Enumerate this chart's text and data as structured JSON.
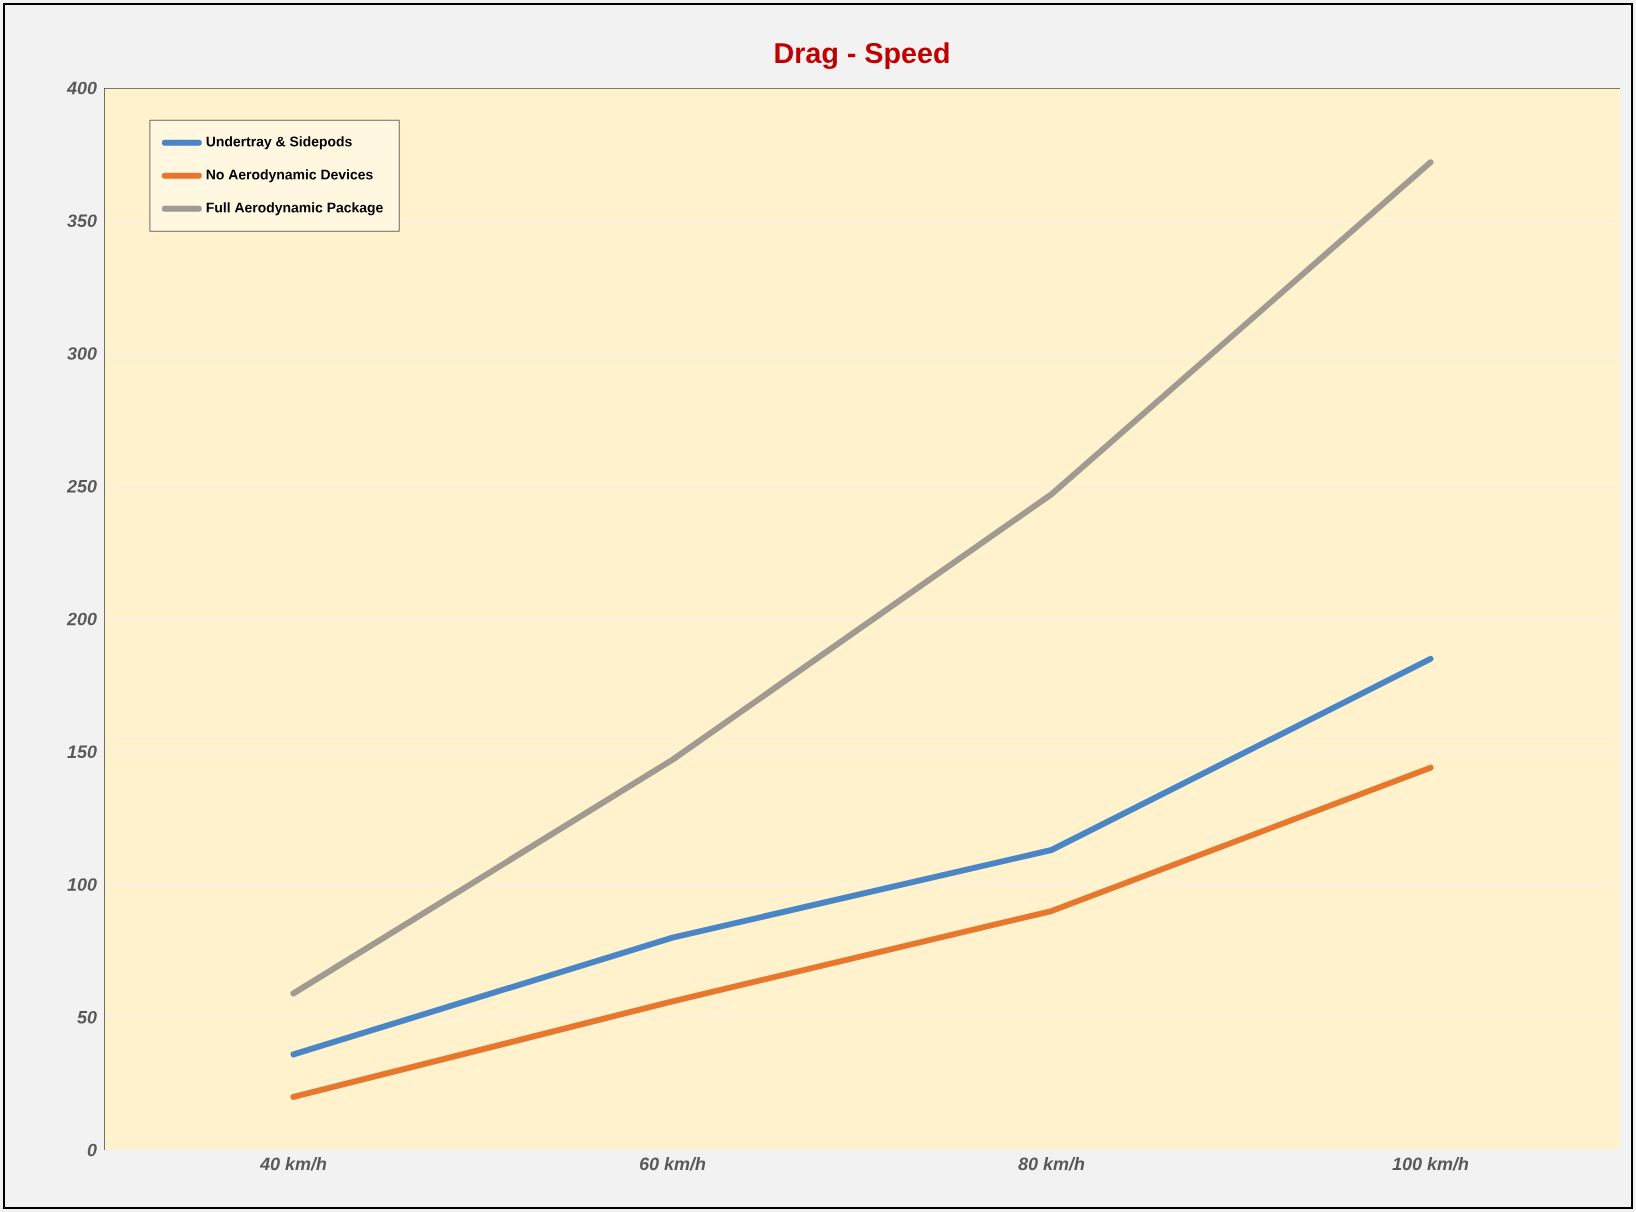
{
  "chart_data": {
    "type": "line",
    "title": "Drag - Speed",
    "categories": [
      "40 km/h",
      "60 km/h",
      "80 km/h",
      "100 km/h"
    ],
    "series": [
      {
        "name": "Undertray & Sidepods",
        "color": "#4a86c5",
        "values": [
          36,
          80,
          113,
          185
        ]
      },
      {
        "name": "No Aerodynamic Devices",
        "color": "#e8772e",
        "values": [
          20,
          56,
          90,
          144
        ]
      },
      {
        "name": "Full Aerodynamic Package",
        "color": "#a09a90",
        "values": [
          59,
          147,
          247,
          372
        ]
      }
    ],
    "ylim": [
      0,
      400
    ],
    "yticks": [
      0,
      50,
      100,
      150,
      200,
      250,
      300,
      350,
      400
    ],
    "grid": "y",
    "legend": "top left",
    "marker": "none",
    "line_style": "solid"
  }
}
